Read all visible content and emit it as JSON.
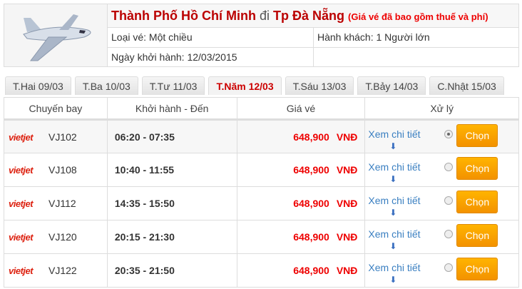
{
  "header": {
    "from": "Thành Phố Hồ Chí Minh",
    "connector": "đi",
    "to": "Tp Đà Nẵng",
    "note": "(Giá vé đã bao gồm thuế và phí)",
    "ticket_type": "Loại vé: Một chiều",
    "passengers": "Hành khách: 1 Người lớn",
    "departure_date": "Ngày khởi hành: 12/03/2015"
  },
  "tabs": [
    {
      "label": "T.Hai 09/03"
    },
    {
      "label": "T.Ba 10/03"
    },
    {
      "label": "T.Tư 11/03"
    },
    {
      "label": "T.Năm 12/03",
      "active": true
    },
    {
      "label": "T.Sáu 13/03"
    },
    {
      "label": "T.Bảy 14/03"
    },
    {
      "label": "C.Nhật 15/03"
    }
  ],
  "columns": [
    "Chuyến bay",
    "Khởi hành - Đến",
    "Giá vé",
    "Xử lý"
  ],
  "flights": [
    {
      "airline": "vietjet",
      "code": "VJ102",
      "time": "06:20 - 07:35",
      "price": "648,900",
      "currency": "VNĐ",
      "detail": "Xem chi tiết",
      "action": "Chọn",
      "selected": true
    },
    {
      "airline": "vietjet",
      "code": "VJ108",
      "time": "10:40 - 11:55",
      "price": "648,900",
      "currency": "VNĐ",
      "detail": "Xem chi tiết",
      "action": "Chọn",
      "selected": false
    },
    {
      "airline": "vietjet",
      "code": "VJ112",
      "time": "14:35 - 15:50",
      "price": "648,900",
      "currency": "VNĐ",
      "detail": "Xem chi tiết",
      "action": "Chọn",
      "selected": false
    },
    {
      "airline": "vietjet",
      "code": "VJ120",
      "time": "20:15 - 21:30",
      "price": "648,900",
      "currency": "VNĐ",
      "detail": "Xem chi tiết",
      "action": "Chọn",
      "selected": false
    },
    {
      "airline": "vietjet",
      "code": "VJ122",
      "time": "20:35 - 21:50",
      "price": "648,900",
      "currency": "VNĐ",
      "detail": "Xem chi tiết",
      "action": "Chọn",
      "selected": false
    }
  ]
}
